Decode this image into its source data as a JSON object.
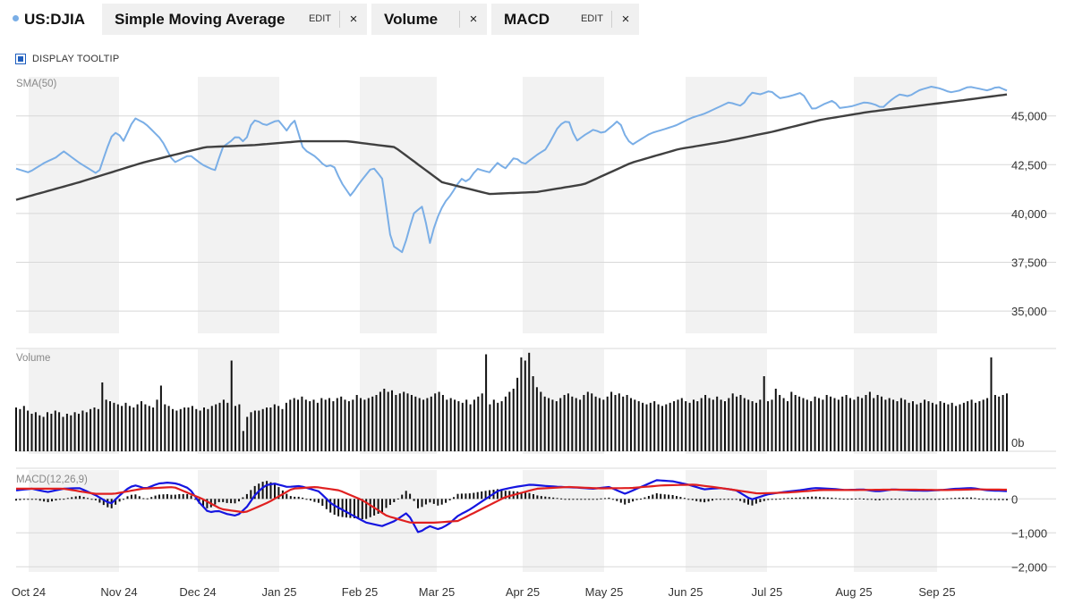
{
  "toolbar": {
    "symbol": "US:DJIA",
    "symbol_color": "#7aaee6",
    "studies": [
      {
        "name": "Simple Moving Average",
        "edit": "EDIT",
        "close": "×"
      },
      {
        "name": "Volume",
        "edit": "",
        "close": "×"
      },
      {
        "name": "MACD",
        "edit": "EDIT",
        "close": "×"
      }
    ]
  },
  "tooltip": {
    "label": "DISPLAY TOOLTIP",
    "checked": true
  },
  "colors": {
    "price": "#7aaee6",
    "sma": "#404040",
    "macd": "#1515e0",
    "signal": "#e02020",
    "histogram": "#111111",
    "volume": "#111111",
    "band": "#f2f2f2",
    "grid": "#d8d8d8"
  },
  "chart_data": [
    {
      "type": "line",
      "panel": "price",
      "label": "SMA(50)",
      "x_ticks": [
        "Oct 24",
        "Nov 24",
        "Dec 24",
        "Jan 25",
        "Feb 25",
        "Mar 25",
        "Apr 25",
        "May 25",
        "Jun 25",
        "Jul 25",
        "Aug 25",
        "Sep 25"
      ],
      "y_ticks": [
        "35,000",
        "37,500",
        "40,000",
        "42,500",
        "45,000"
      ],
      "ylim": [
        34000,
        47000
      ],
      "series": [
        {
          "role": "price",
          "anchors_t": [
            0,
            8,
            18,
            26,
            30,
            40,
            46,
            52,
            60,
            64,
            68,
            75,
            82,
            92,
            100,
            110,
            118,
            126,
            131,
            136,
            140,
            145,
            150,
            154,
            158,
            166,
            172,
            176,
            182,
            190,
            196,
            201,
            206,
            212,
            218,
            226,
            232,
            238,
            245,
            252,
            258,
            262,
            266,
            271,
            276,
            282,
            286,
            292,
            300,
            305,
            310,
            316,
            322,
            330,
            336,
            344,
            350,
            355,
            360,
            366,
            372,
            378,
            382,
            386,
            390,
            396,
            402,
            410,
            418,
            428,
            436,
            444,
            452,
            460,
            466,
            472,
            478,
            484,
            490,
            498,
            505,
            512,
            518,
            522,
            530,
            538,
            544,
            549,
            553,
            556,
            560,
            566,
            572,
            580,
            586,
            592,
            598,
            604,
            610,
            616,
            622,
            628
          ],
          "anchors_v": [
            42300,
            42100,
            42600,
            42900,
            43200,
            42600,
            42300,
            42000,
            43900,
            44200,
            43700,
            44900,
            44600,
            43800,
            42600,
            43000,
            42500,
            42200,
            43400,
            43700,
            44000,
            43600,
            44800,
            44700,
            44500,
            44800,
            44200,
            44900,
            43300,
            42900,
            42400,
            42500,
            41600,
            40900,
            41600,
            42400,
            41800,
            38400,
            38000,
            40000,
            40400,
            38400,
            39600,
            40500,
            41000,
            41800,
            41600,
            42300,
            42100,
            42600,
            42300,
            42900,
            42500,
            43000,
            43300,
            44500,
            44800,
            43700,
            44000,
            44300,
            44100,
            44500,
            44800,
            44000,
            43500,
            43800,
            44100,
            44300,
            44500,
            44900,
            45100,
            45400,
            45700,
            45500,
            46200,
            46100,
            46300,
            45900,
            46000,
            46200,
            45300,
            45600,
            45800,
            45400,
            45500,
            45700,
            45600,
            45400,
            45700,
            45900,
            46100,
            46000,
            46300,
            46500,
            46400,
            46200,
            46300,
            46500,
            46400,
            46300,
            46500,
            46300
          ]
        },
        {
          "role": "sma",
          "name": "SMA(50)",
          "anchors_t": [
            0,
            40,
            80,
            120,
            150,
            180,
            210,
            240,
            270,
            300,
            330,
            360,
            390,
            420,
            450,
            480,
            510,
            540,
            570,
            600,
            628
          ],
          "anchors_v": [
            40700,
            41600,
            42600,
            43400,
            43500,
            43700,
            43700,
            43400,
            41600,
            41000,
            41100,
            41500,
            42600,
            43300,
            43700,
            44200,
            44800,
            45200,
            45500,
            45800,
            46100
          ]
        }
      ]
    },
    {
      "type": "bar",
      "panel": "volume",
      "label": "Volume",
      "y_ticks": [
        "0b"
      ],
      "values_b": [
        0.28,
        0.27,
        0.29,
        0.26,
        0.24,
        0.25,
        0.23,
        0.22,
        0.25,
        0.24,
        0.26,
        0.25,
        0.22,
        0.24,
        0.23,
        0.25,
        0.24,
        0.26,
        0.25,
        0.27,
        0.28,
        0.27,
        0.44,
        0.33,
        0.32,
        0.31,
        0.3,
        0.29,
        0.31,
        0.29,
        0.28,
        0.3,
        0.32,
        0.3,
        0.29,
        0.28,
        0.33,
        0.42,
        0.3,
        0.29,
        0.27,
        0.26,
        0.27,
        0.28,
        0.28,
        0.29,
        0.27,
        0.26,
        0.28,
        0.27,
        0.29,
        0.3,
        0.31,
        0.33,
        0.31,
        0.58,
        0.29,
        0.3,
        0.13,
        0.22,
        0.25,
        0.26,
        0.26,
        0.27,
        0.28,
        0.28,
        0.3,
        0.29,
        0.27,
        0.31,
        0.33,
        0.34,
        0.33,
        0.35,
        0.33,
        0.32,
        0.33,
        0.31,
        0.34,
        0.33,
        0.34,
        0.32,
        0.34,
        0.35,
        0.33,
        0.32,
        0.33,
        0.36,
        0.34,
        0.33,
        0.34,
        0.35,
        0.36,
        0.38,
        0.4,
        0.38,
        0.39,
        0.36,
        0.37,
        0.38,
        0.37,
        0.36,
        0.35,
        0.34,
        0.33,
        0.34,
        0.35,
        0.37,
        0.38,
        0.36,
        0.33,
        0.34,
        0.33,
        0.32,
        0.31,
        0.33,
        0.3,
        0.33,
        0.35,
        0.37,
        0.62,
        0.3,
        0.33,
        0.31,
        0.32,
        0.35,
        0.38,
        0.4,
        0.47,
        0.6,
        0.58,
        0.63,
        0.48,
        0.41,
        0.38,
        0.35,
        0.34,
        0.33,
        0.32,
        0.34,
        0.36,
        0.37,
        0.35,
        0.34,
        0.33,
        0.36,
        0.38,
        0.37,
        0.35,
        0.34,
        0.33,
        0.35,
        0.38,
        0.36,
        0.37,
        0.35,
        0.36,
        0.34,
        0.33,
        0.32,
        0.31,
        0.3,
        0.31,
        0.32,
        0.3,
        0.29,
        0.3,
        0.31,
        0.32,
        0.33,
        0.34,
        0.32,
        0.31,
        0.33,
        0.32,
        0.34,
        0.36,
        0.34,
        0.33,
        0.35,
        0.33,
        0.32,
        0.34,
        0.37,
        0.35,
        0.36,
        0.34,
        0.33,
        0.32,
        0.31,
        0.33,
        0.48,
        0.32,
        0.33,
        0.4,
        0.36,
        0.34,
        0.32,
        0.38,
        0.36,
        0.35,
        0.34,
        0.33,
        0.32,
        0.35,
        0.34,
        0.33,
        0.36,
        0.35,
        0.34,
        0.33,
        0.35,
        0.36,
        0.34,
        0.33,
        0.35,
        0.34,
        0.36,
        0.38,
        0.34,
        0.36,
        0.35,
        0.33,
        0.34,
        0.33,
        0.32,
        0.34,
        0.33,
        0.31,
        0.32,
        0.3,
        0.31,
        0.33,
        0.32,
        0.31,
        0.3,
        0.32,
        0.31,
        0.3,
        0.31,
        0.29,
        0.3,
        0.31,
        0.32,
        0.33,
        0.31,
        0.32,
        0.33,
        0.34,
        0.6,
        0.36,
        0.35,
        0.36,
        0.37
      ]
    },
    {
      "type": "line",
      "panel": "macd",
      "label": "MACD(12,26,9)",
      "y_ticks": [
        "0",
        "−1,000",
        "−2,000"
      ],
      "ylim": [
        -2150,
        850
      ],
      "series": [
        {
          "role": "macd",
          "anchors_t": [
            0,
            10,
            20,
            30,
            40,
            50,
            60,
            66,
            72,
            76,
            82,
            90,
            96,
            102,
            110,
            116,
            122,
            128,
            134,
            140,
            146,
            152,
            158,
            164,
            172,
            180,
            186,
            192,
            200,
            210,
            222,
            232,
            240,
            248,
            255,
            262,
            268,
            274,
            280,
            288,
            296,
            306,
            316,
            326,
            336,
            346,
            356,
            366,
            376,
            386,
            396,
            406,
            416,
            426,
            436,
            446,
            456,
            466,
            476,
            486,
            496,
            506,
            516,
            526,
            536,
            546,
            556,
            566,
            576,
            586,
            596,
            606,
            616,
            628
          ],
          "anchors_v": [
            250,
            300,
            200,
            300,
            320,
            120,
            -150,
            120,
            350,
            400,
            300,
            450,
            480,
            450,
            300,
            -100,
            -400,
            -350,
            -450,
            -500,
            -250,
            150,
            400,
            450,
            350,
            380,
            300,
            220,
            -150,
            -400,
            -700,
            -800,
            -650,
            -400,
            -1000,
            -800,
            -900,
            -750,
            -500,
            -300,
            -50,
            250,
            350,
            420,
            380,
            350,
            330,
            300,
            350,
            150,
            350,
            550,
            520,
            420,
            280,
            320,
            260,
            -20,
            130,
            200,
            250,
            320,
            300,
            260,
            280,
            220,
            280,
            250,
            240,
            260,
            300,
            320,
            250,
            230
          ]
        },
        {
          "role": "signal",
          "anchors_t": [
            0,
            30,
            50,
            62,
            80,
            100,
            118,
            130,
            145,
            160,
            175,
            190,
            205,
            220,
            235,
            250,
            265,
            280,
            295,
            310,
            330,
            350,
            370,
            390,
            410,
            430,
            450,
            470,
            490,
            510,
            530,
            550,
            570,
            590,
            610,
            628
          ],
          "anchors_v": [
            300,
            300,
            150,
            150,
            300,
            350,
            0,
            -300,
            -400,
            -100,
            300,
            350,
            250,
            -50,
            -500,
            -700,
            -700,
            -650,
            -300,
            50,
            300,
            350,
            310,
            320,
            400,
            420,
            300,
            160,
            190,
            260,
            260,
            270,
            270,
            260,
            280,
            270
          ]
        }
      ],
      "histogram_note": "MACD minus signal"
    }
  ]
}
